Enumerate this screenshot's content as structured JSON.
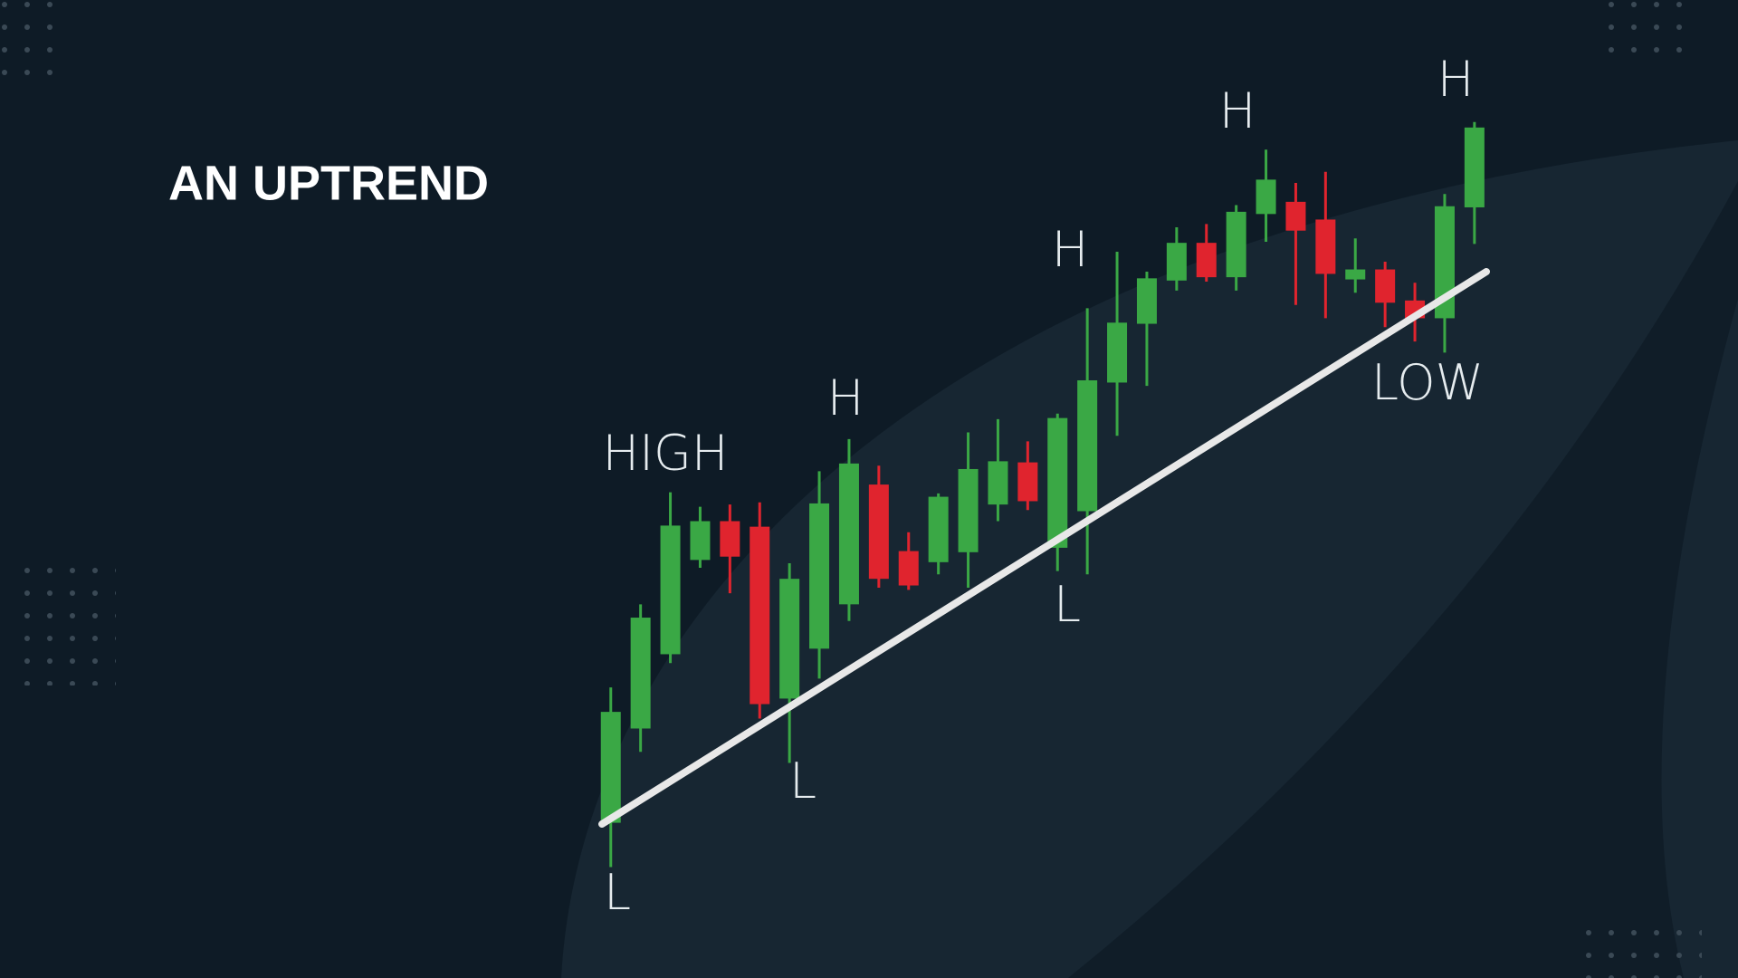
{
  "title": "AN UPTREND",
  "chart_data": {
    "type": "candlestick",
    "categories": [
      null,
      null,
      null,
      null,
      null,
      null,
      null,
      null,
      null,
      null,
      null,
      null,
      null,
      null,
      null,
      null,
      null,
      null,
      null,
      null,
      null,
      null,
      null,
      null,
      null,
      null,
      null,
      null,
      null,
      null
    ],
    "open": [
      14.0,
      22.5,
      29.2,
      37.7,
      41.2,
      40.7,
      25.2,
      29.7,
      33.7,
      44.5,
      38.5,
      37.5,
      38.4,
      42.7,
      46.5,
      38.8,
      42.1,
      53.7,
      59.0,
      62.9,
      66.3,
      63.2,
      68.9,
      70.0,
      68.4,
      63.0,
      63.9,
      61.1,
      59.5,
      69.5
    ],
    "high": [
      26.2,
      33.7,
      43.8,
      42.5,
      42.7,
      42.9,
      37.4,
      45.7,
      48.6,
      46.2,
      40.2,
      43.7,
      49.2,
      50.4,
      48.4,
      50.9,
      60.4,
      65.5,
      63.7,
      67.7,
      68.0,
      69.7,
      74.7,
      71.7,
      72.7,
      66.7,
      64.6,
      62.7,
      70.7,
      77.2
    ],
    "low": [
      10.0,
      20.4,
      28.4,
      37.0,
      34.7,
      23.4,
      19.4,
      27.0,
      32.2,
      35.2,
      35.0,
      36.4,
      35.2,
      41.2,
      42.2,
      36.7,
      36.4,
      48.9,
      53.4,
      62.0,
      62.8,
      62.0,
      66.4,
      60.7,
      59.5,
      61.8,
      58.7,
      57.4,
      56.4,
      66.2
    ],
    "close": [
      24.0,
      32.5,
      40.8,
      41.2,
      38.0,
      24.7,
      36.0,
      42.8,
      46.4,
      36.0,
      35.4,
      43.4,
      45.9,
      46.6,
      43.0,
      50.5,
      53.9,
      59.1,
      63.1,
      66.3,
      63.2,
      69.1,
      72.0,
      67.4,
      63.5,
      63.9,
      60.9,
      59.5,
      69.6,
      76.7
    ],
    "up_color": "#3aa845",
    "down_color": "#e0242e",
    "ylim": [
      0,
      88.2
    ],
    "annotations": [
      "HIGH",
      "H",
      "H",
      "H",
      "H",
      "L",
      "L",
      "L",
      "LOW"
    ]
  }
}
